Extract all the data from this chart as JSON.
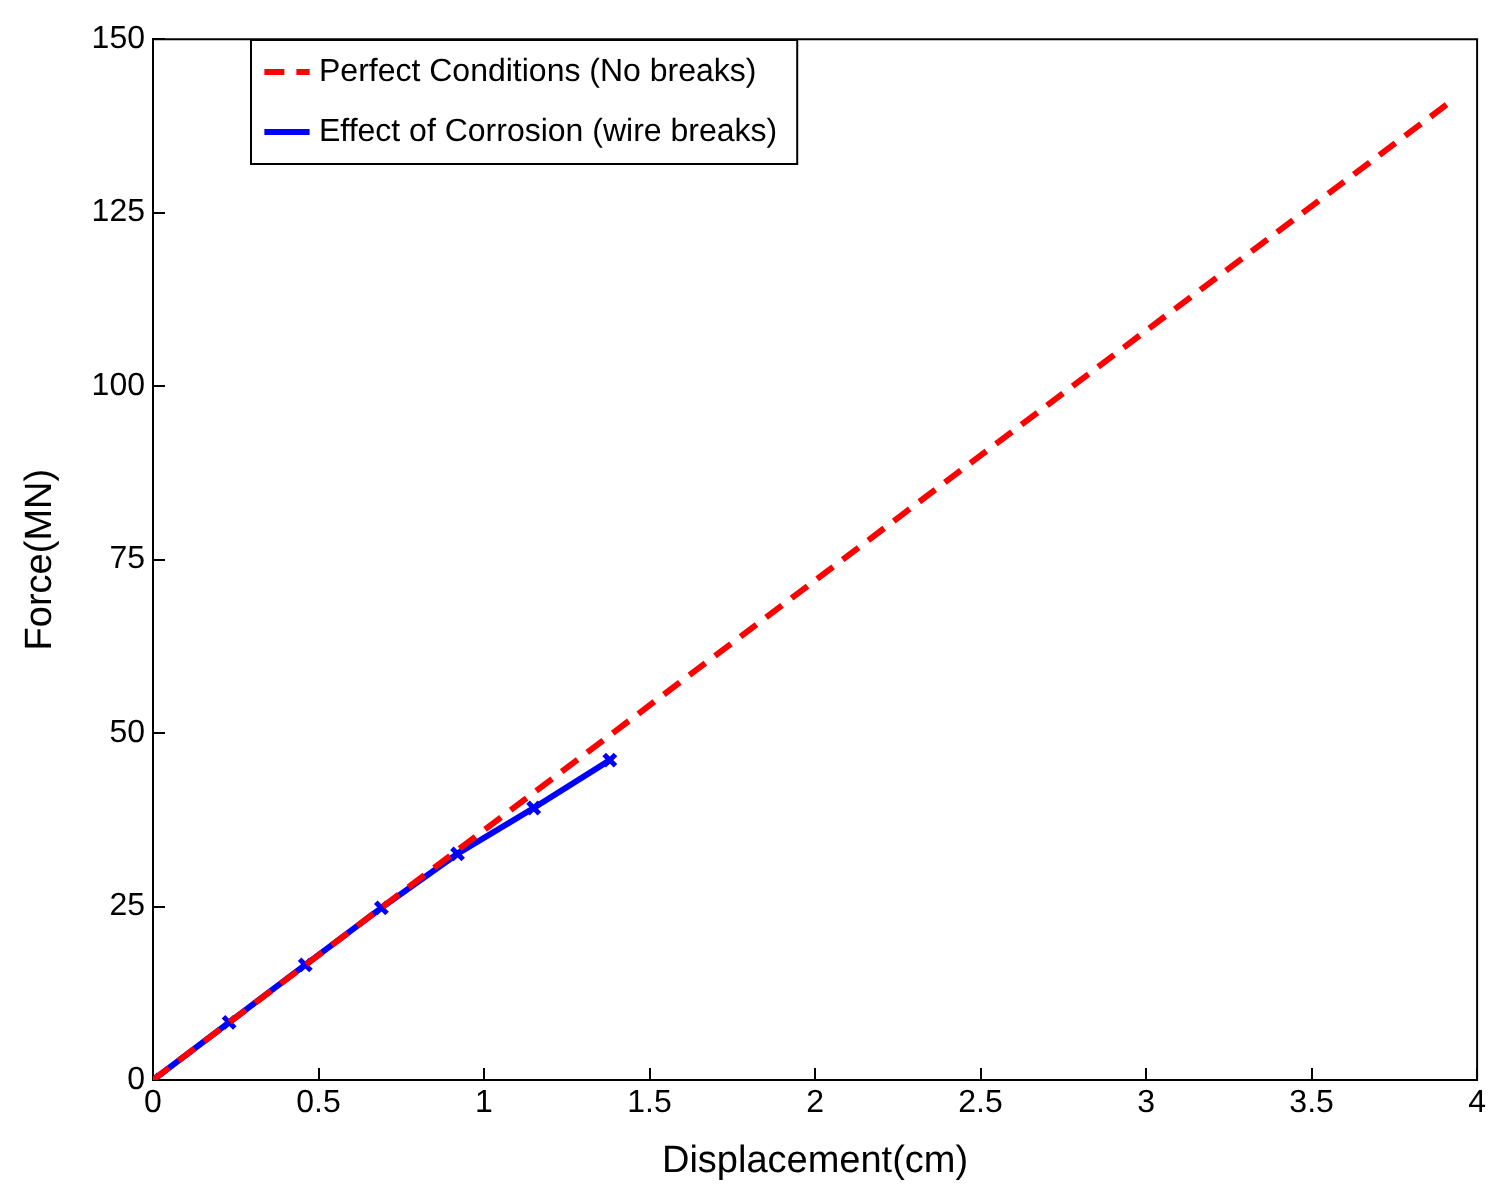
{
  "chart_data": {
    "type": "line",
    "xlabel": "Displacement(cm)",
    "ylabel": "Force(MN)",
    "xlim": [
      0,
      4
    ],
    "xticks": [
      0,
      0.5,
      1,
      1.5,
      2,
      2.5,
      3,
      3.5,
      4
    ],
    "ylim": [
      0,
      150
    ],
    "yticks": [
      0,
      25,
      50,
      75,
      100,
      125,
      150
    ],
    "grid": false,
    "legend": "top left",
    "series": [
      {
        "name": "Perfect Conditions (No breaks)",
        "color": "#ff0000",
        "line_style": "dashed",
        "marker": "none",
        "x": [
          0,
          1,
          2,
          3,
          3.92
        ],
        "values": [
          0,
          36,
          72,
          108,
          141
        ]
      },
      {
        "name": "Effect of Corrosion (wire breaks)",
        "color": "#0000ff",
        "line_style": "solid",
        "marker": "cross",
        "x": [
          0,
          0.23,
          0.46,
          0.69,
          0.92,
          1.15,
          1.38
        ],
        "values": [
          0,
          8.3,
          16.6,
          24.8,
          32.6,
          39.2,
          46.1
        ]
      }
    ]
  }
}
